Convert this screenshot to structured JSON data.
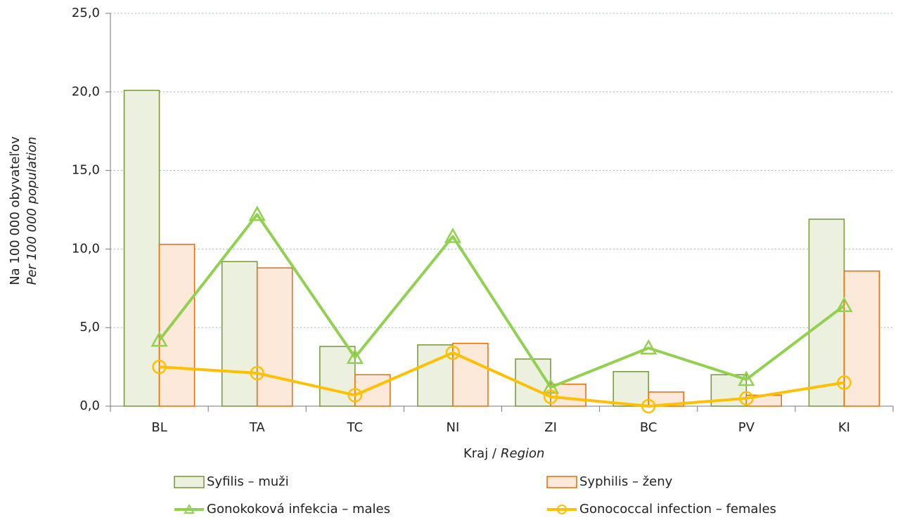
{
  "chart_data": {
    "type": "bar",
    "y_label": [
      "Na 100 000 obyvateľov",
      "Per 100 000 population"
    ],
    "x_label": [
      "Kraj /",
      "Region"
    ],
    "categories": [
      "BL",
      "TA",
      "TC",
      "NI",
      "ZI",
      "BC",
      "PV",
      "KI"
    ],
    "series": [
      {
        "name": "Syfilis – muži",
        "type": "bar",
        "color": "#ebf1de",
        "edge_color": "#77933c",
        "values": [
          20.1,
          9.2,
          3.8,
          3.9,
          3.0,
          2.2,
          2.0,
          11.9
        ]
      },
      {
        "name": "Syphilis – ženy",
        "type": "bar",
        "color": "#fde9d9",
        "edge_color": "#e46c0a",
        "values": [
          10.3,
          8.8,
          2.0,
          4.0,
          1.4,
          0.9,
          0.7,
          8.6
        ]
      },
      {
        "name": "Gonokoková infekcia – males",
        "type": "line",
        "marker": "triangle",
        "color": "#92d050",
        "values": [
          4.2,
          12.2,
          3.1,
          10.8,
          1.2,
          3.7,
          1.7,
          6.4
        ]
      },
      {
        "name": "Gonococcal infection – females",
        "type": "line",
        "marker": "circle",
        "color": "#ffc000",
        "values": [
          2.5,
          2.1,
          0.7,
          3.4,
          0.6,
          0.0,
          0.5,
          1.5
        ]
      }
    ],
    "ylim": [
      0,
      25
    ],
    "yticks": [
      {
        "value": 0,
        "label": "0,0"
      },
      {
        "value": 5,
        "label": "5,0"
      },
      {
        "value": 10,
        "label": "10,0"
      },
      {
        "value": 15,
        "label": "15,0"
      },
      {
        "value": 20,
        "label": "20,0"
      },
      {
        "value": 25,
        "label": "25,0"
      }
    ],
    "grid": true
  }
}
